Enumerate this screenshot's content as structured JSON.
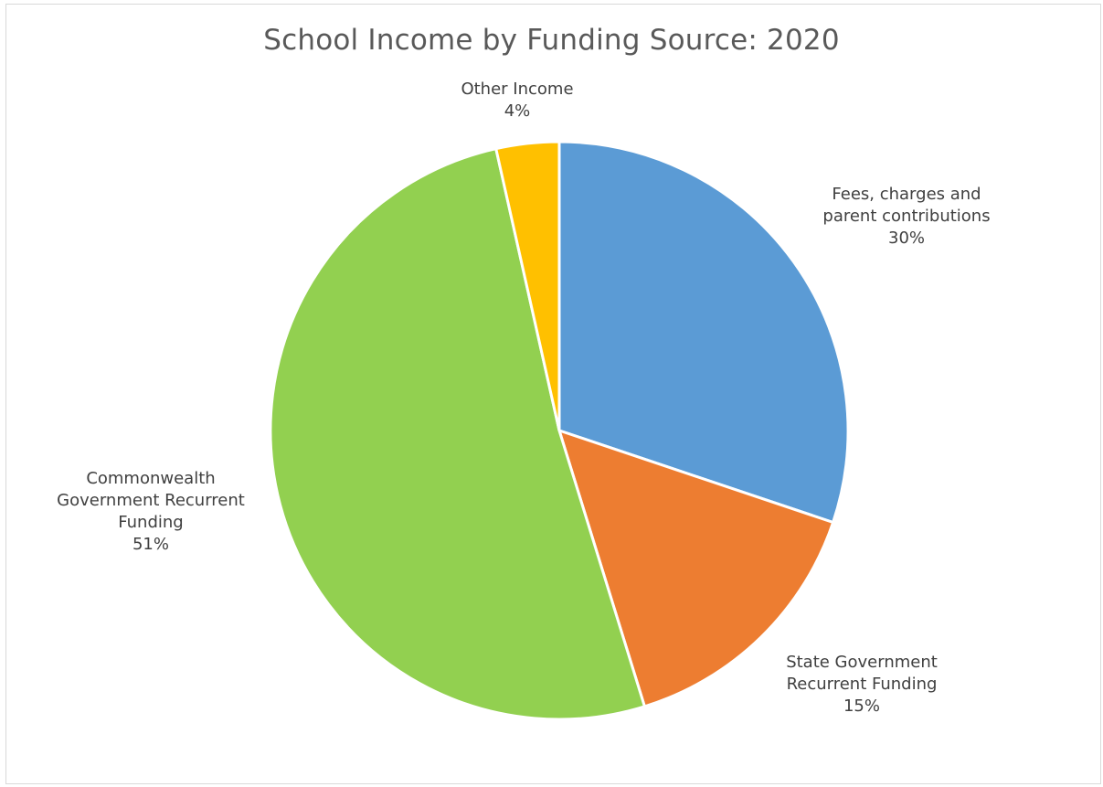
{
  "chart_data": {
    "type": "pie",
    "title": "School Income by Funding Source: 2020",
    "start_angle_deg": 0,
    "direction": "clockwise",
    "legend": "none",
    "slices": [
      {
        "label_lines": [
          "Fees, charges and",
          "parent contributions"
        ],
        "percent_label": "30%",
        "value": 30,
        "color": "#5b9bd5"
      },
      {
        "label_lines": [
          "State Government",
          "Recurrent Funding"
        ],
        "percent_label": "15%",
        "value": 15,
        "color": "#ed7d31"
      },
      {
        "label_lines": [
          "Commonwealth",
          "Government Recurrent",
          "Funding"
        ],
        "percent_label": "51%",
        "value": 51,
        "color": "#92d050"
      },
      {
        "label_lines": [
          "Other Income"
        ],
        "percent_label": "4%",
        "value": 3.5,
        "color": "#ffc000"
      }
    ]
  }
}
